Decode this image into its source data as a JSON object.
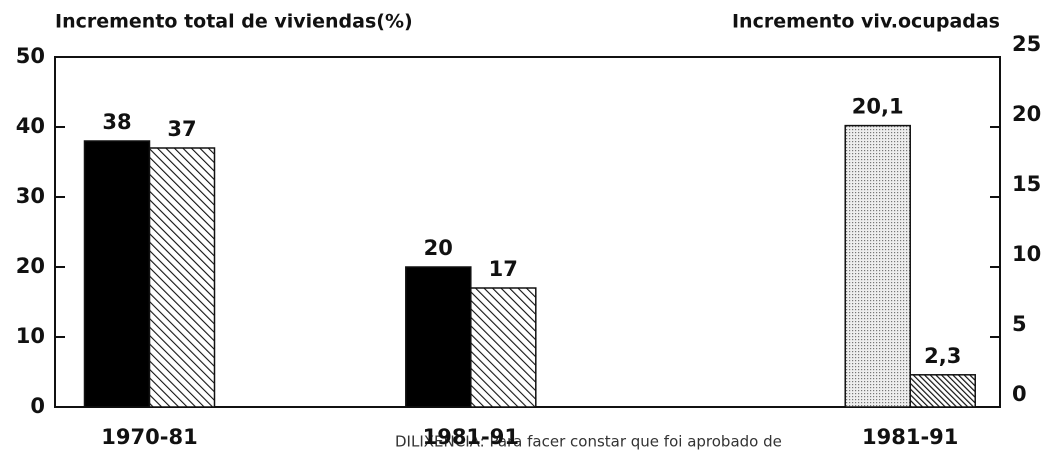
{
  "chart_data": {
    "type": "bar",
    "title": "Incremento total de viviendas(%)",
    "y2_title": "Incremento viv.ocupadas",
    "annotation": "DILIXENCIA: Para facer constar que foi aprobado de",
    "categories": [
      "1970-81",
      "1981-91",
      "1981-91"
    ],
    "series": [
      {
        "color": "#000000",
        "values": [
          38,
          20,
          null
        ]
      },
      {
        "color": "#222222",
        "values": [
          37,
          17,
          null
        ]
      },
      {
        "color": "#bbbbbb",
        "axis": "y2",
        "values": [
          null,
          null,
          20.1
        ],
        "value_labels": [
          null,
          null,
          "20,1"
        ]
      },
      {
        "color": "#222222",
        "axis": "y2",
        "values": [
          null,
          null,
          2.3
        ],
        "value_labels": [
          null,
          null,
          "2,3"
        ]
      }
    ],
    "ylim": [
      0,
      50
    ],
    "yticks": [
      0,
      10,
      20,
      30,
      40,
      50
    ],
    "y2lim": [
      0,
      25
    ],
    "y2ticks": [
      0,
      5,
      10,
      15,
      20,
      25
    ],
    "grid": false
  }
}
